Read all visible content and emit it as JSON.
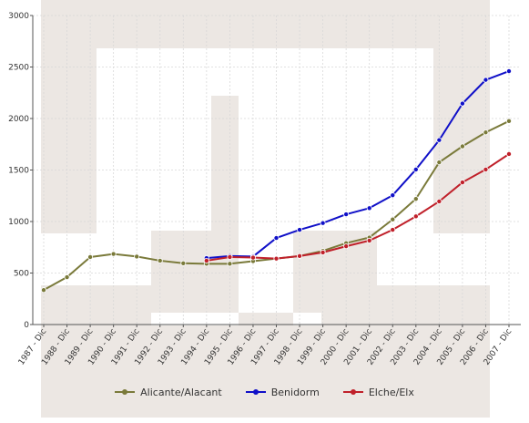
{
  "chart_data": {
    "type": "line",
    "title": "",
    "xlabel": "",
    "ylabel": "",
    "ylim": [
      0,
      3000
    ],
    "yticks": [
      0,
      500,
      1000,
      1500,
      2000,
      2500,
      3000
    ],
    "grid": true,
    "legend_position": "bottom-center",
    "categories": [
      "1987 - Dic",
      "1988 - Dic",
      "1989 - Dic",
      "1990 - Dic",
      "1991 - Dic",
      "1992 - Dic",
      "1993 - Dic",
      "1994 - Dic",
      "1995 - Dic",
      "1996 - Dic",
      "1997 - Dic",
      "1998 - Dic",
      "1999 - Dic",
      "2000 - Dic",
      "2001 - Dic",
      "2002 - Dic",
      "2003 - Dic",
      "2004 - Dic",
      "2005 - Dic",
      "2006 - Dic",
      "2007 - Dic"
    ],
    "series": [
      {
        "name": "Alicante/Alacant",
        "color": "#7a7a3a",
        "values": [
          335,
          460,
          655,
          685,
          660,
          620,
          595,
          590,
          590,
          615,
          640,
          665,
          715,
          790,
          845,
          1020,
          1220,
          1575,
          1730,
          1865,
          1975
        ]
      },
      {
        "name": "Benidorm",
        "color": "#1010c8",
        "values": [
          null,
          null,
          null,
          null,
          null,
          null,
          null,
          645,
          665,
          660,
          840,
          920,
          985,
          1070,
          1130,
          1255,
          1505,
          1790,
          2145,
          2375,
          2460
        ]
      },
      {
        "name": "Elche/Elx",
        "color": "#c0202a",
        "values": [
          null,
          null,
          null,
          null,
          null,
          null,
          null,
          620,
          655,
          650,
          640,
          665,
          700,
          760,
          815,
          920,
          1050,
          1195,
          1380,
          1505,
          1655
        ]
      }
    ]
  }
}
